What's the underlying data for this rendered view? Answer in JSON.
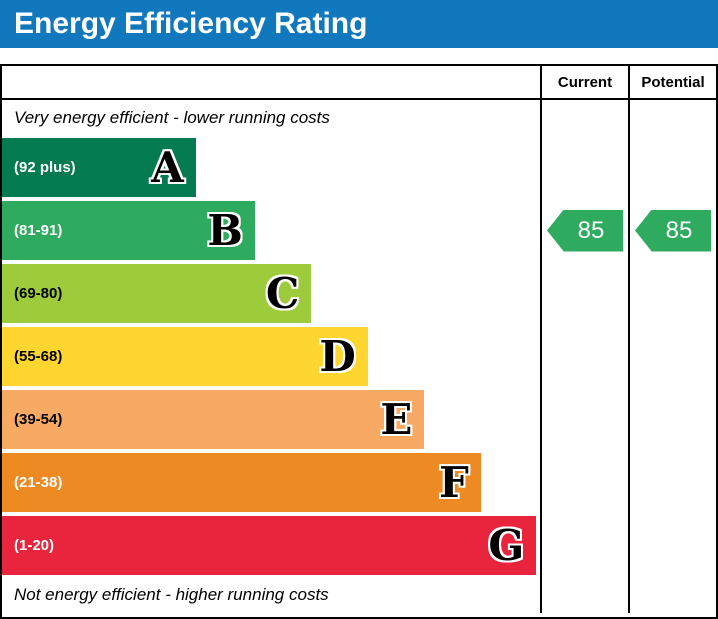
{
  "title": "Energy Efficiency Rating",
  "colors": {
    "title_bar": "#1278be",
    "border": "#000000",
    "arrow": "#2eab5f"
  },
  "chart": {
    "columns": [
      "Current",
      "Potential"
    ],
    "top_caption": "Very energy efficient - lower running costs",
    "bottom_caption": "Not energy efficient - higher running costs"
  },
  "chart_data": {
    "type": "bar",
    "title": "Energy Efficiency Rating",
    "orientation": "horizontal",
    "bands": [
      {
        "letter": "A",
        "range": "(92 plus)",
        "min": 92,
        "max": 100,
        "color": "#047a51",
        "text_color": "#ffffff",
        "width_pct": 36
      },
      {
        "letter": "B",
        "range": "(81-91)",
        "min": 81,
        "max": 91,
        "color": "#2eab5f",
        "text_color": "#ffffff",
        "width_pct": 47
      },
      {
        "letter": "C",
        "range": "(69-80)",
        "min": 69,
        "max": 80,
        "color": "#9dcb3c",
        "text_color": "#000000",
        "width_pct": 57.5
      },
      {
        "letter": "D",
        "range": "(55-68)",
        "min": 55,
        "max": 68,
        "color": "#ffd530",
        "text_color": "#000000",
        "width_pct": 68
      },
      {
        "letter": "E",
        "range": "(39-54)",
        "min": 39,
        "max": 54,
        "color": "#f8aa65",
        "text_color": "#000000",
        "width_pct": 78.5
      },
      {
        "letter": "F",
        "range": "(21-38)",
        "min": 21,
        "max": 38,
        "color": "#ee8a23",
        "text_color": "#ffffff",
        "width_pct": 89
      },
      {
        "letter": "G",
        "range": "(1-20)",
        "min": 1,
        "max": 20,
        "color": "#e9243d",
        "text_color": "#ffffff",
        "width_pct": 99.3
      }
    ],
    "current": {
      "value": 85,
      "band": "B"
    },
    "potential": {
      "value": 85,
      "band": "B"
    },
    "legend_position": "none",
    "grid": false
  }
}
